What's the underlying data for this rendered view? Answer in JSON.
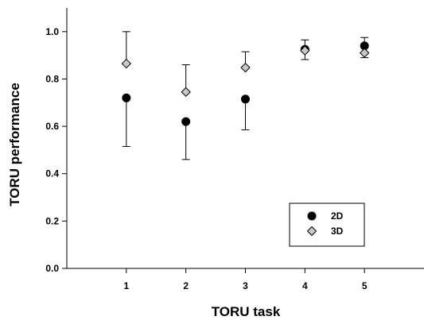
{
  "chart_data": {
    "type": "scatter",
    "xlabel": "TORU task",
    "ylabel": "TORU performance",
    "x": [
      1,
      2,
      3,
      4,
      5
    ],
    "x_ticks": [
      "1",
      "2",
      "3",
      "4",
      "5"
    ],
    "xlim": [
      0,
      6
    ],
    "y_ticks": [
      "0.0",
      "0.2",
      "0.4",
      "0.6",
      "0.8",
      "1.0"
    ],
    "ylim": [
      0,
      1.1
    ],
    "grid": false,
    "legend_position": "bottom-right",
    "series": [
      {
        "name": "2D",
        "marker": "circle",
        "color": "#000000",
        "values": [
          0.72,
          0.62,
          0.715,
          0.925,
          0.94
        ],
        "error_low": [
          0.515,
          0.46,
          0.585,
          null,
          null
        ],
        "error_high": [
          null,
          null,
          null,
          null,
          0.975
        ]
      },
      {
        "name": "3D",
        "marker": "diamond",
        "color": "#c8c8c8",
        "values": [
          0.865,
          0.745,
          0.848,
          0.92,
          0.91
        ],
        "error_low": [
          null,
          null,
          null,
          0.882,
          0.89
        ],
        "error_high": [
          1.0,
          0.86,
          0.915,
          0.965,
          null
        ]
      }
    ]
  }
}
